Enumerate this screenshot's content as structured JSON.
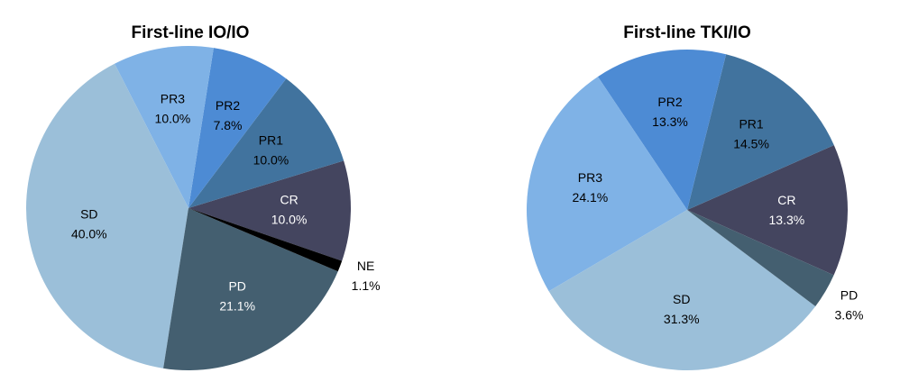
{
  "chart_data": [
    {
      "type": "pie",
      "title": "First-line IO/IO",
      "categories": [
        "CR",
        "PR1",
        "PR2",
        "PR3",
        "SD",
        "PD",
        "NE"
      ],
      "values": [
        10.0,
        10.0,
        7.8,
        10.0,
        40.0,
        21.1,
        1.1
      ],
      "value_labels": [
        "10.0%",
        "10.0%",
        "7.8%",
        "10.0%",
        "40.0%",
        "21.1%",
        "1.1%"
      ],
      "colors": [
        "#44455f",
        "#41739e",
        "#4d8bd4",
        "#7fb2e6",
        "#9bbfd9",
        "#445f70",
        "#000000"
      ]
    },
    {
      "type": "pie",
      "title": "First-line TKI/IO",
      "categories": [
        "CR",
        "PR1",
        "PR2",
        "PR3",
        "SD",
        "PD"
      ],
      "values": [
        13.3,
        14.5,
        13.3,
        24.1,
        31.3,
        3.6
      ],
      "value_labels": [
        "13.3%",
        "14.5%",
        "13.3%",
        "24.1%",
        "31.3%",
        "3.6%"
      ],
      "colors": [
        "#44455f",
        "#41739e",
        "#4d8bd4",
        "#7fb2e6",
        "#9bbfd9",
        "#445f70"
      ]
    }
  ]
}
